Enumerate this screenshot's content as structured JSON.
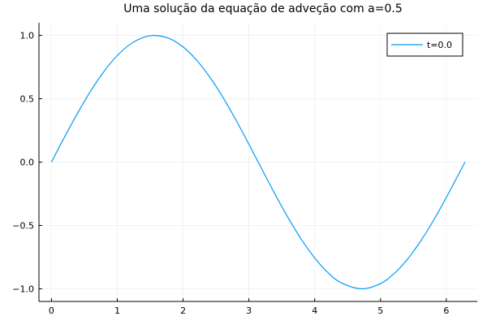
{
  "chart_data": {
    "type": "line",
    "title": "Uma solução da equação de adveção com a=0.5",
    "xlabel": "",
    "ylabel": "",
    "xlim": [
      -0.19,
      6.47
    ],
    "ylim": [
      -1.1,
      1.1
    ],
    "x_ticks": [
      0,
      1,
      2,
      3,
      4,
      5,
      6
    ],
    "x_tick_labels": [
      "0",
      "1",
      "2",
      "3",
      "4",
      "5",
      "6"
    ],
    "y_ticks": [
      -1.0,
      -0.5,
      0.0,
      0.5,
      1.0
    ],
    "y_tick_labels": [
      "−1.0",
      "−0.5",
      "0.0",
      "0.5",
      "1.0"
    ],
    "grid": true,
    "legend_position": "top-right",
    "series": [
      {
        "name": "t=0.0",
        "color": "#009AFA",
        "x": [
          0.0,
          0.2,
          0.4,
          0.6,
          0.8,
          1.0,
          1.2,
          1.4,
          1.5708,
          1.8,
          2.0,
          2.2,
          2.4,
          2.6,
          2.8,
          3.0,
          3.1416,
          3.4,
          3.6,
          3.8,
          4.0,
          4.2,
          4.4,
          4.7124,
          5.0,
          5.2,
          5.4,
          5.6,
          5.8,
          6.0,
          6.2832
        ],
        "y": [
          0.0,
          0.199,
          0.389,
          0.565,
          0.717,
          0.841,
          0.932,
          0.985,
          1.0,
          0.974,
          0.909,
          0.808,
          0.675,
          0.516,
          0.335,
          0.141,
          0.0,
          -0.256,
          -0.443,
          -0.612,
          -0.757,
          -0.872,
          -0.952,
          -1.0,
          -0.959,
          -0.883,
          -0.773,
          -0.631,
          -0.465,
          -0.279,
          0.0
        ]
      }
    ]
  }
}
